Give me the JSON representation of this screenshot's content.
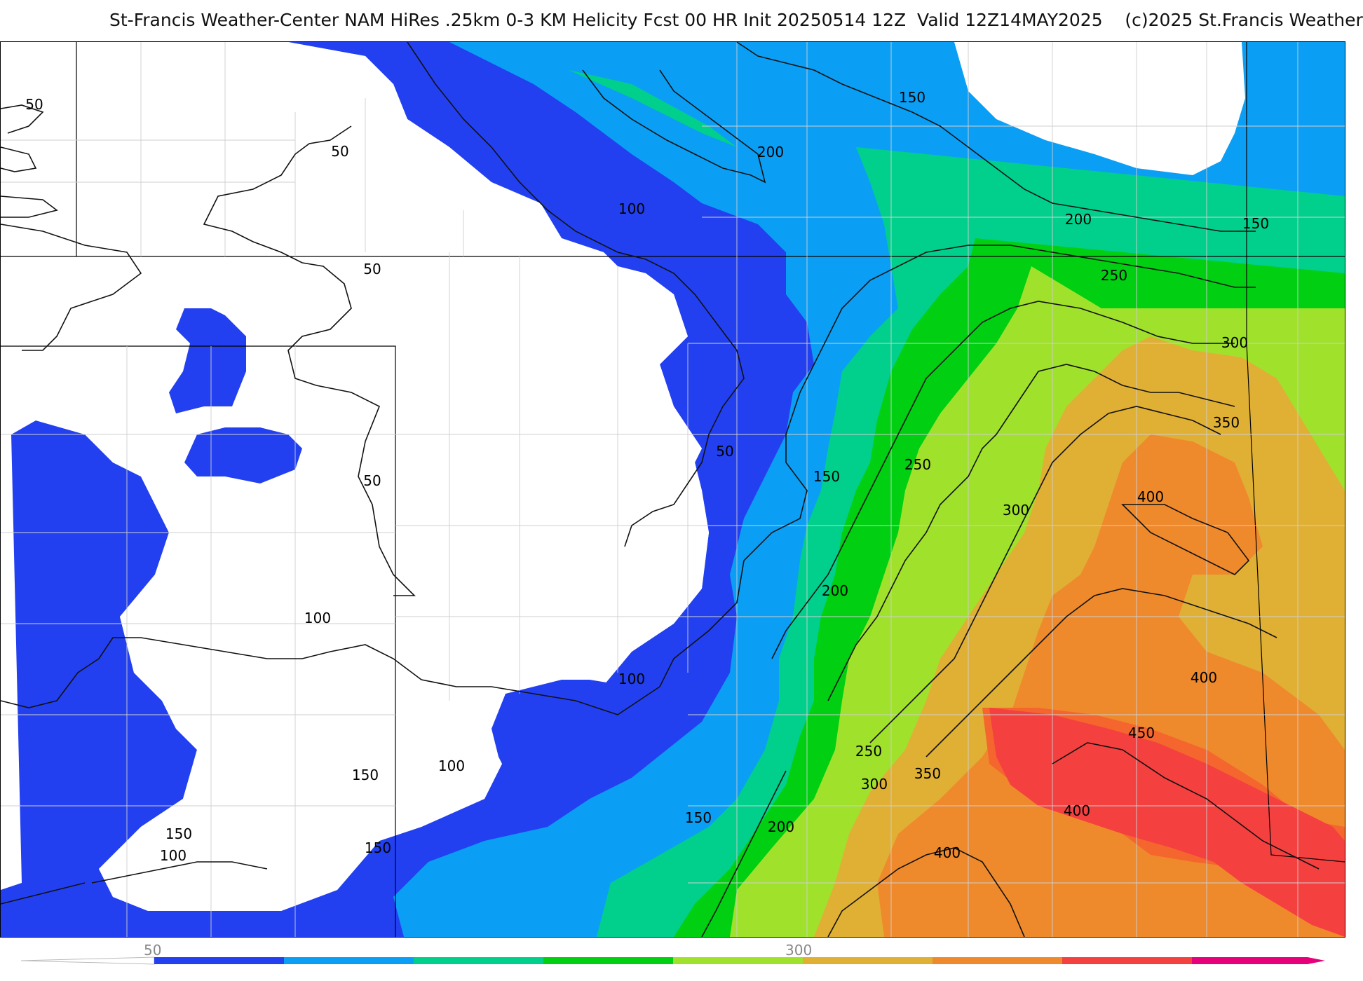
{
  "header": {
    "title": "St-Francis Weather-Center NAM HiRes .25km 0-3 KM Helicity Fcst 00 HR Init 20250514 12Z  Valid 12Z14MAY2025    (c)2025 St.Francis Weather"
  },
  "map": {
    "field": "0-3 KM Helicity",
    "colors": {
      "band_50_100": "#2340f0",
      "band_100_150": "#0a9ff5",
      "band_150_200": "#00d08c",
      "band_200_250": "#00cf12",
      "band_250_300": "#a0e12c",
      "band_300_350": "#e0b035",
      "band_350_400": "#ef8a2c",
      "band_400_450": "#f4662e",
      "band_450_500": "#f54040"
    },
    "contour_labels": [
      "50",
      "50",
      "50",
      "50",
      "50",
      "100",
      "100",
      "100",
      "100",
      "100",
      "150",
      "150",
      "150",
      "150",
      "150",
      "150",
      "150",
      "200",
      "200",
      "200",
      "200",
      "250",
      "250",
      "250",
      "300",
      "300",
      "300",
      "350",
      "350",
      "400",
      "400",
      "400",
      "400",
      "450"
    ]
  },
  "colorbar": {
    "tick_labels": [
      "50",
      "300"
    ],
    "colors": [
      "#2340f0",
      "#0a9ff5",
      "#00d08c",
      "#00cf12",
      "#a0e12c",
      "#e0b035",
      "#ef8a2c",
      "#f54040",
      "#e6007a"
    ]
  }
}
